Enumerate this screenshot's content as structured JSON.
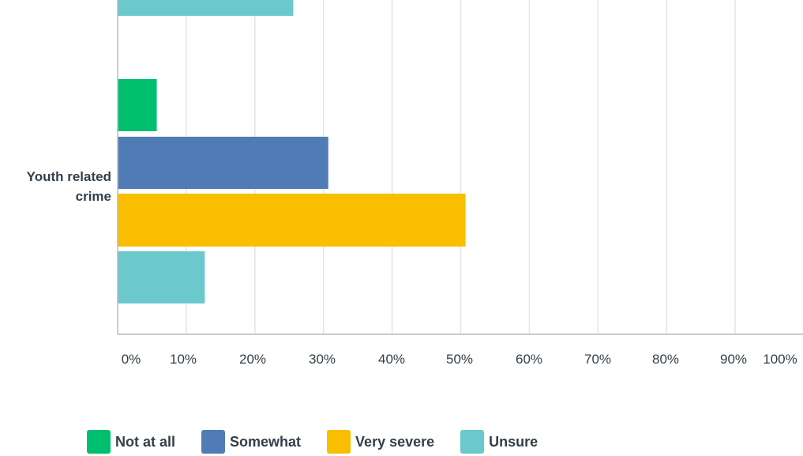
{
  "chart_data": {
    "type": "bar",
    "orientation": "horizontal",
    "categories": [
      "",
      "Youth related crime"
    ],
    "category_label_lines": [
      [],
      [
        "Youth related",
        "crime"
      ]
    ],
    "series": [
      {
        "name": "Not at all",
        "color": "#00bf6f",
        "values": [
          null,
          5.7
        ]
      },
      {
        "name": "Somewhat",
        "color": "#507cb6",
        "values": [
          null,
          30.7
        ]
      },
      {
        "name": "Very severe",
        "color": "#f9be00",
        "values": [
          null,
          50.7
        ]
      },
      {
        "name": "Unsure",
        "color": "#6bc8cd",
        "values": [
          25.6,
          12.7
        ]
      }
    ],
    "xlim": [
      0,
      100
    ],
    "xticks": [
      "0%",
      "10%",
      "20%",
      "30%",
      "40%",
      "50%",
      "60%",
      "70%",
      "80%",
      "90%",
      "100%"
    ],
    "grid": true,
    "legend_position": "bottom"
  }
}
